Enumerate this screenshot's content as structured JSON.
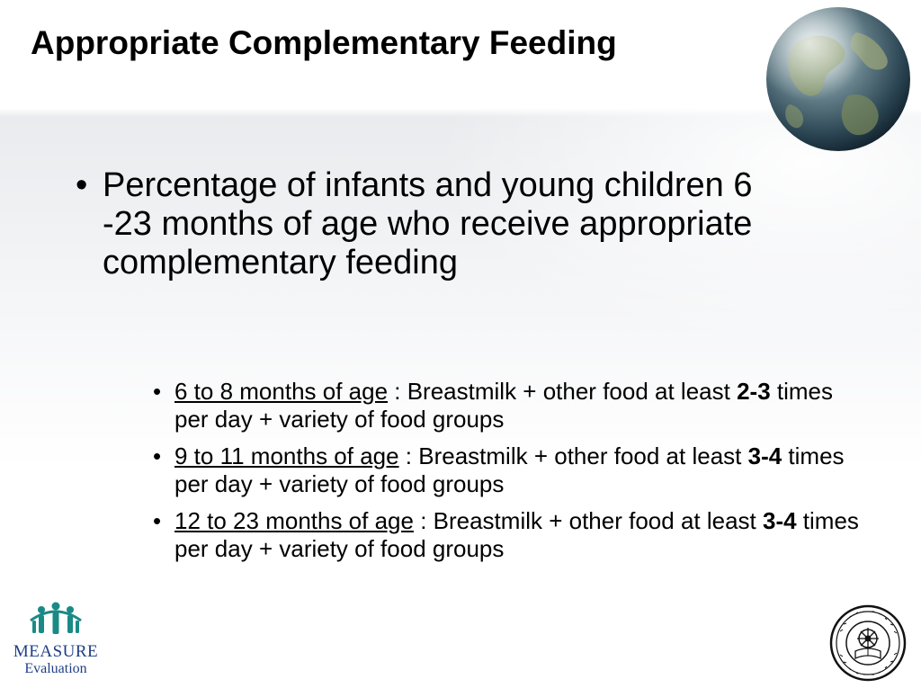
{
  "slide": {
    "title": "Appropriate Complementary Feeding",
    "main_bullet": "Percentage of infants and young children 6 -23 months of age who receive appropriate complementary feeding",
    "sub_bullets": [
      {
        "age": "6 to 8 months of age",
        "text_before": " : Breastmilk + other food at least ",
        "bold": "2-3",
        "text_after": " times per day + variety of food groups"
      },
      {
        "age": "9 to 11 months of age",
        "text_before": " : Breastmilk + other food at least ",
        "bold": "3-4",
        "text_after": " times per day + variety of food groups"
      },
      {
        "age": "12 to 23 months of age",
        "text_before": " : Breastmilk + other food at least ",
        "bold": "3-4",
        "text_after": " times per day + variety of food groups"
      }
    ],
    "bullet_char": "•"
  },
  "logos": {
    "left_line1": "MEASURE",
    "left_line2": "Evaluation",
    "left_icon": "people-group-icon",
    "right_icon": "addis-ababa-university-seal-icon"
  },
  "colors": {
    "measure_blue": "#1f3e86",
    "measure_teal": "#1a8a86"
  }
}
